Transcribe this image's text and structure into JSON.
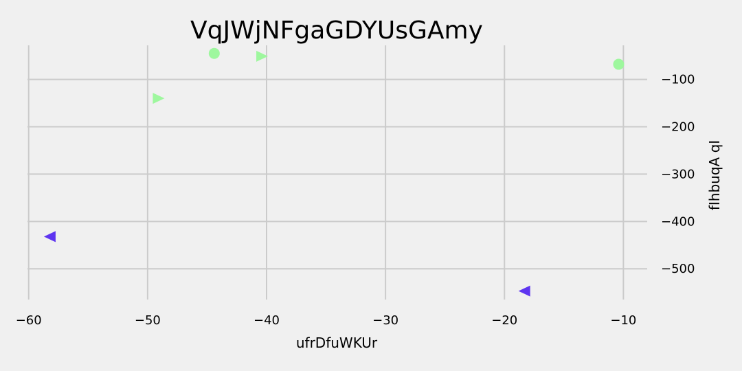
{
  "chart_data": {
    "type": "scatter",
    "title": "VqJWjNFgaGDYUsGAmy",
    "xlabel": "ufrDfuWKUr",
    "ylabel": "fIhbuqA qI",
    "xlim": [
      -60.1,
      -8.0
    ],
    "ylim": [
      -565,
      -28
    ],
    "xticks": [
      -60,
      -50,
      -40,
      -30,
      -20,
      -10
    ],
    "yticks": [
      -100,
      -200,
      -300,
      -400,
      -500
    ],
    "xtick_labels": [
      "−60",
      "−50",
      "−40",
      "−30",
      "−20",
      "−10"
    ],
    "ytick_labels": [
      "−100",
      "−200",
      "−300",
      "−400",
      "−500"
    ],
    "y_axis_side": "right",
    "grid": true,
    "background": "#f0f0f0",
    "grid_color": "#cbcbcb",
    "series": [
      {
        "marker": "circle",
        "color": "#9ef79e",
        "points": [
          [
            -44.4,
            -45
          ],
          [
            -10.4,
            -68
          ]
        ]
      },
      {
        "marker": "triangle-right",
        "color": "#9ef79e",
        "points": [
          [
            -40.4,
            -51
          ],
          [
            -49.1,
            -140
          ]
        ]
      },
      {
        "marker": "triangle-left",
        "color": "#5e35f0",
        "points": [
          [
            -58.2,
            -432
          ],
          [
            -18.3,
            -547
          ]
        ]
      }
    ]
  }
}
